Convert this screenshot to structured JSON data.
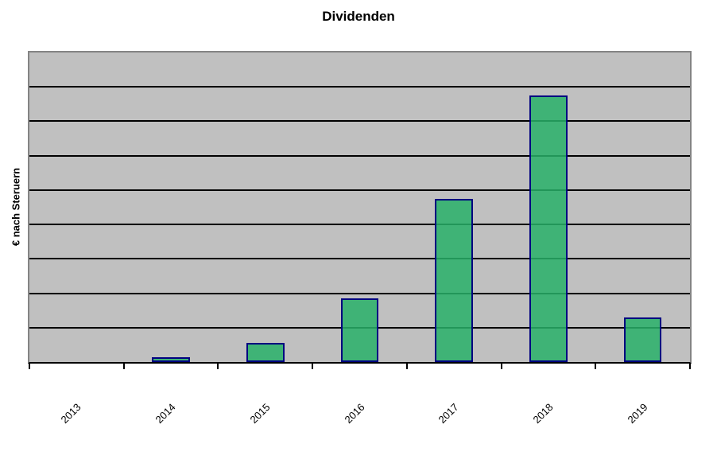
{
  "chart_data": {
    "type": "bar",
    "title": "Dividenden",
    "ylabel": "€ nach Steruern",
    "xlabel": "",
    "categories": [
      "2013",
      "2014",
      "2015",
      "2016",
      "2017",
      "2018",
      "2019"
    ],
    "values": [
      0,
      0.15,
      0.55,
      1.85,
      4.75,
      7.75,
      1.3
    ],
    "ylim": [
      0,
      9
    ],
    "y_major_unit": 1,
    "y_tick_labels_visible": false,
    "gridlines": "horizontal-major",
    "legend": null,
    "colors": {
      "bar_fill": "rgba(40,176,104,0.85)",
      "bar_border": "#000080",
      "plot_background": "#C0C0C0",
      "gridline": "#000000",
      "plot_border": "#848484",
      "axis_line": "#000000",
      "text": "#000000",
      "page_background": "#FFFFFF"
    }
  }
}
